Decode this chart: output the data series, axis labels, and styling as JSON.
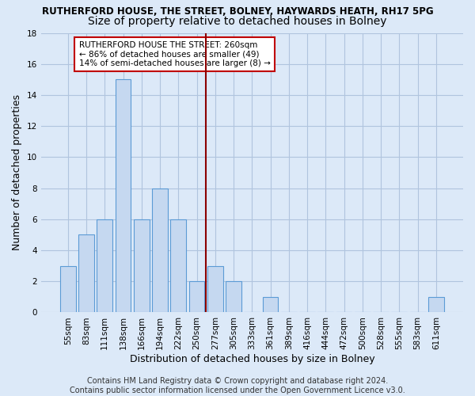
{
  "title": "RUTHERFORD HOUSE, THE STREET, BOLNEY, HAYWARDS HEATH, RH17 5PG",
  "subtitle": "Size of property relative to detached houses in Bolney",
  "xlabel": "Distribution of detached houses by size in Bolney",
  "ylabel": "Number of detached properties",
  "categories": [
    "55sqm",
    "83sqm",
    "111sqm",
    "138sqm",
    "166sqm",
    "194sqm",
    "222sqm",
    "250sqm",
    "277sqm",
    "305sqm",
    "333sqm",
    "361sqm",
    "389sqm",
    "416sqm",
    "444sqm",
    "472sqm",
    "500sqm",
    "528sqm",
    "555sqm",
    "583sqm",
    "611sqm"
  ],
  "values": [
    3,
    5,
    6,
    15,
    6,
    8,
    6,
    2,
    3,
    2,
    0,
    1,
    0,
    0,
    0,
    0,
    0,
    0,
    0,
    0,
    1
  ],
  "bar_color": "#c5d8f0",
  "bar_edge_color": "#5b9bd5",
  "vline_x": 7.5,
  "vline_color": "#8b0000",
  "annotation_text": "RUTHERFORD HOUSE THE STREET: 260sqm\n← 86% of detached houses are smaller (49)\n14% of semi-detached houses are larger (8) →",
  "annotation_box_color": "#ffffff",
  "annotation_box_edge": "#c00000",
  "ylim": [
    0,
    18
  ],
  "yticks": [
    0,
    2,
    4,
    6,
    8,
    10,
    12,
    14,
    16,
    18
  ],
  "footer": "Contains HM Land Registry data © Crown copyright and database right 2024.\nContains public sector information licensed under the Open Government Licence v3.0.",
  "bg_color": "#dce9f8",
  "plot_bg_color": "#dce9f8",
  "grid_color": "#b0c4de",
  "title_fontsize": 8.5,
  "subtitle_fontsize": 10,
  "axis_label_fontsize": 9,
  "tick_fontsize": 7.5,
  "footer_fontsize": 7,
  "annotation_fontsize": 7.5
}
